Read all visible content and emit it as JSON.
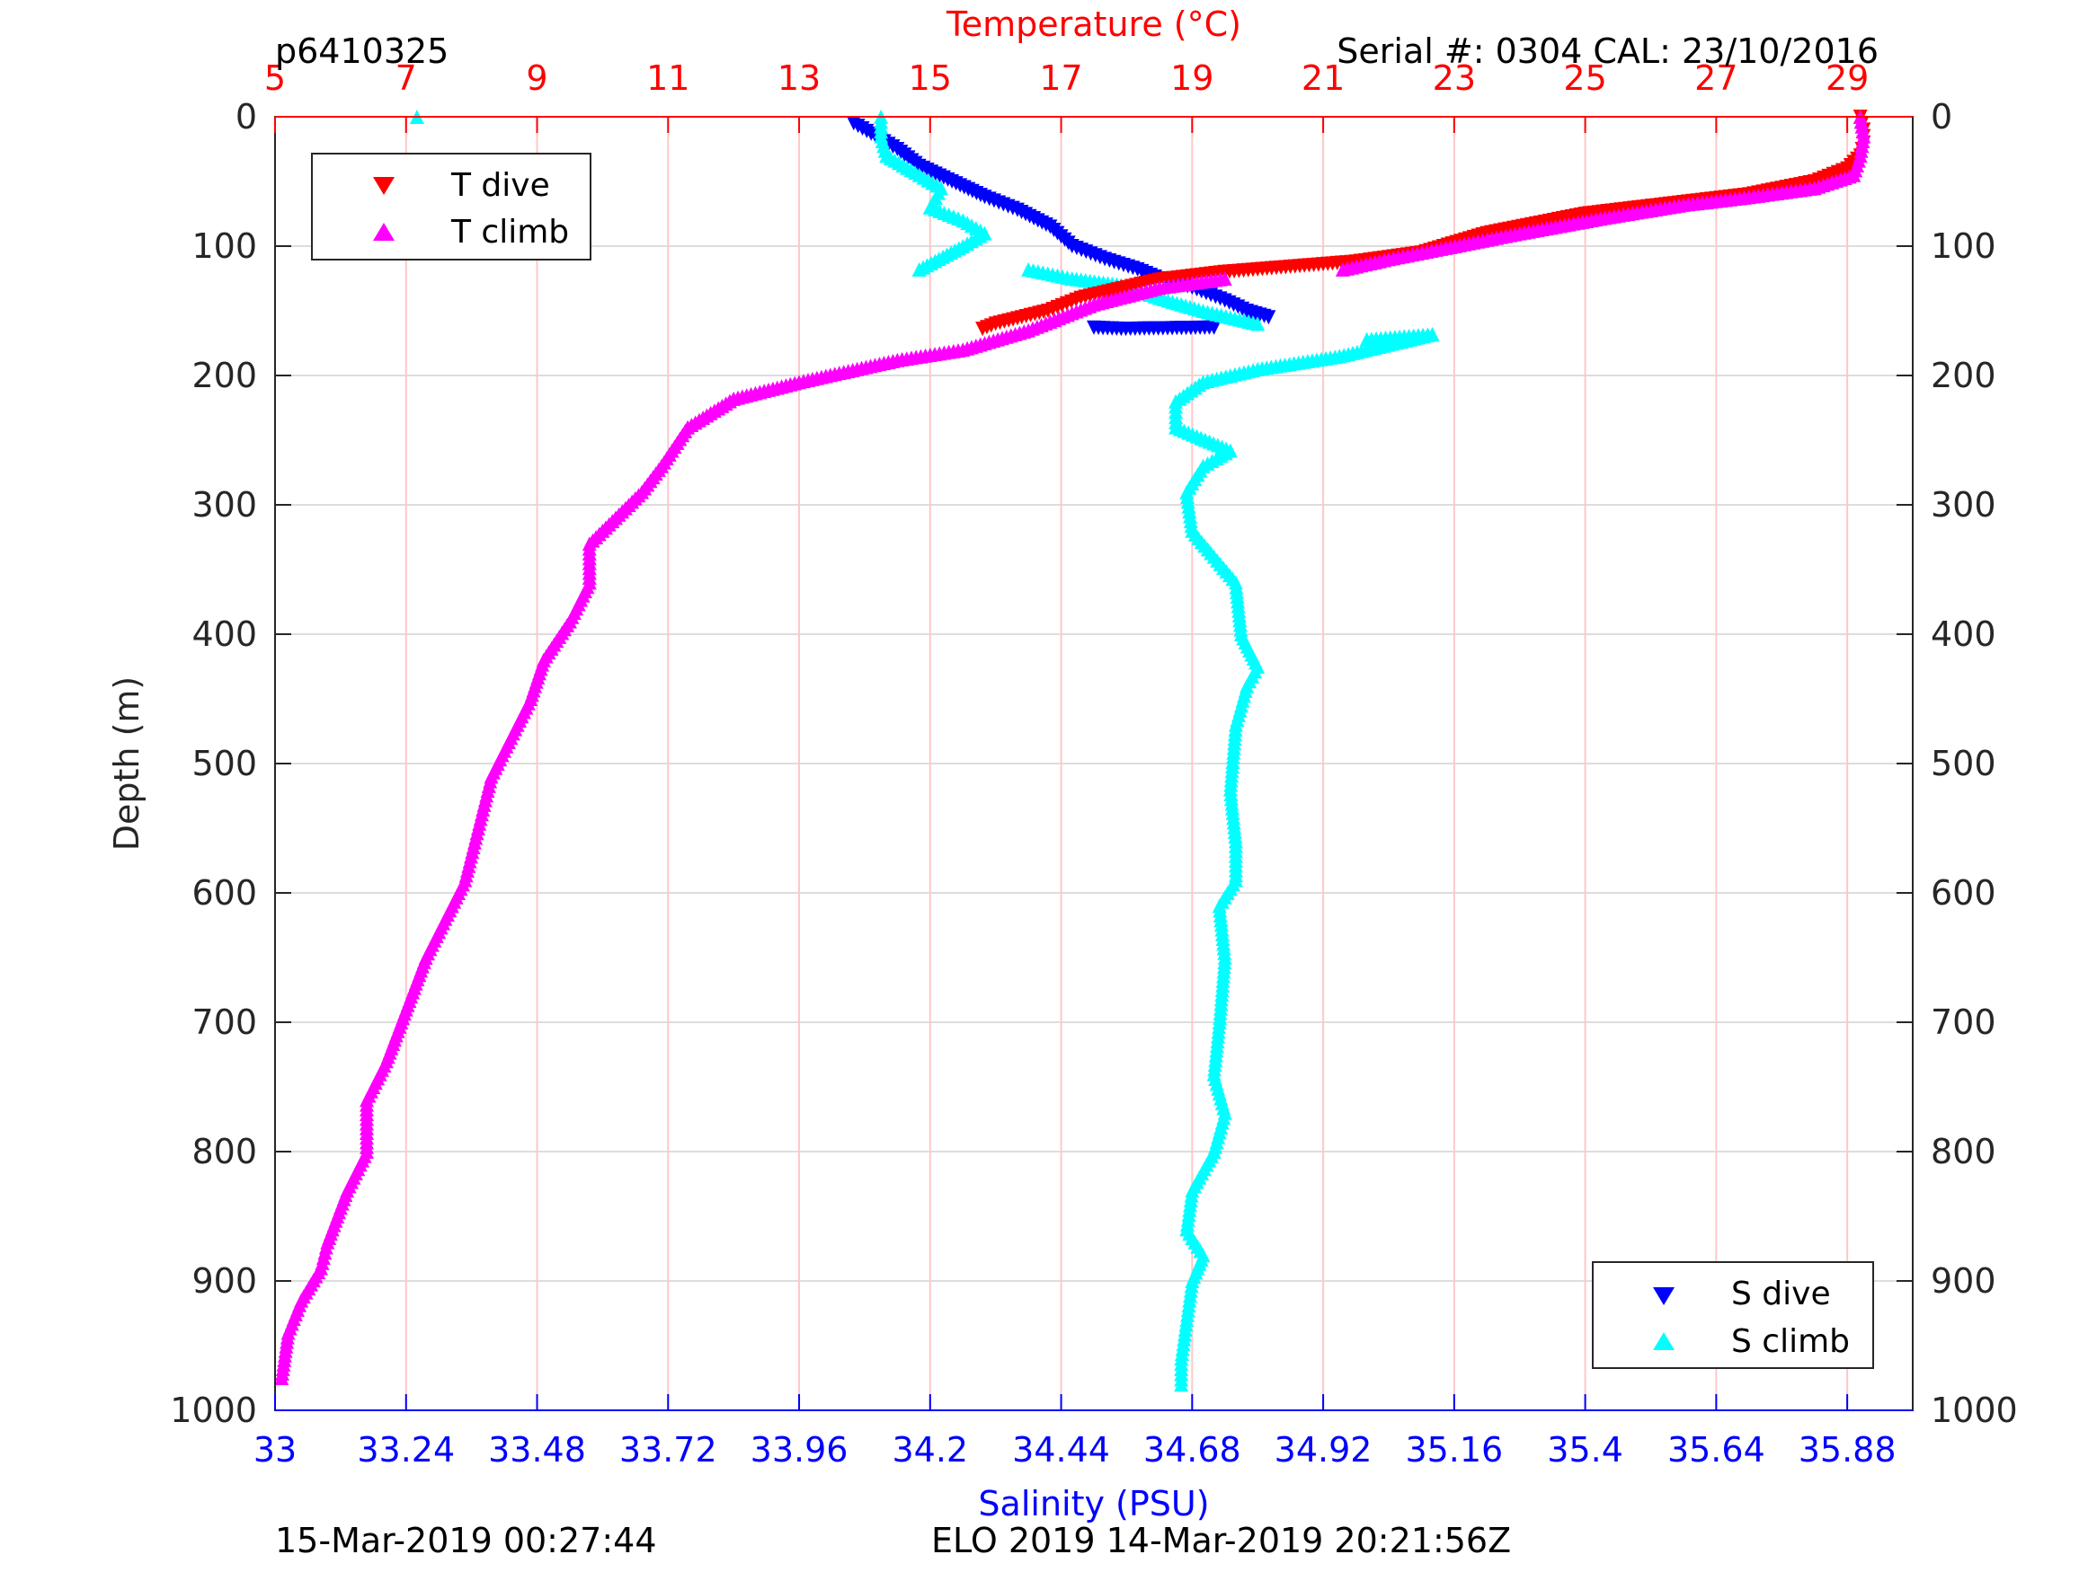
{
  "header": {
    "profile_id": "p6410325",
    "serial_cal": "Serial #: 0304  CAL: 23/10/2016"
  },
  "footer": {
    "left_timestamp": "15-Mar-2019 00:27:44",
    "right_text": "ELO 2019 14-Mar-2019 20:21:56Z"
  },
  "colors": {
    "temperature_axis": "#ff0000",
    "salinity_axis": "#0000ff",
    "t_dive": "#ff0000",
    "t_climb": "#ff00ff",
    "s_dive": "#0000ff",
    "s_climb": "#00ffff",
    "grid_temp": "#ffc8c8",
    "grid_depth": "#dddddd"
  },
  "chart_data": {
    "type": "scatter",
    "grid": true,
    "y_axis": {
      "label": "Depth (m)",
      "range": [
        0,
        1000
      ],
      "reversed": true,
      "ticks": [
        0,
        100,
        200,
        300,
        400,
        500,
        600,
        700,
        800,
        900,
        1000
      ],
      "tick_labels": [
        "0",
        "100",
        "200",
        "300",
        "400",
        "500",
        "600",
        "700",
        "800",
        "900",
        "1000"
      ]
    },
    "x_top": {
      "label": "Temperature (°C)",
      "range": [
        5,
        30
      ],
      "ticks": [
        5,
        7,
        9,
        11,
        13,
        15,
        17,
        19,
        21,
        23,
        25,
        27,
        29
      ],
      "tick_labels": [
        "5",
        "7",
        "9",
        "11",
        "13",
        "15",
        "17",
        "19",
        "21",
        "23",
        "25",
        "27",
        "29"
      ]
    },
    "x_bottom": {
      "label": "Salinity (PSU)",
      "range": [
        33,
        36
      ],
      "ticks": [
        33,
        33.24,
        33.48,
        33.72,
        33.96,
        34.2,
        34.44,
        34.68,
        34.92,
        35.16,
        35.4,
        35.64,
        35.88
      ],
      "tick_labels": [
        "33",
        "33.24",
        "33.48",
        "33.72",
        "33.96",
        "34.2",
        "34.44",
        "34.68",
        "34.92",
        "35.16",
        "35.4",
        "35.64",
        "35.88"
      ]
    },
    "legends": [
      {
        "placement": "top-left",
        "entries": [
          {
            "label": "T dive",
            "marker": "triangle-down",
            "series": "T dive"
          },
          {
            "label": "T climb",
            "marker": "triangle-up",
            "series": "T climb"
          }
        ]
      },
      {
        "placement": "bottom-right",
        "entries": [
          {
            "label": "S dive",
            "marker": "triangle-down",
            "series": "S dive"
          },
          {
            "label": "S climb",
            "marker": "triangle-up",
            "series": "S climb"
          }
        ]
      }
    ],
    "series": [
      {
        "name": "T dive",
        "axis": "temperature",
        "marker": "triangle-down",
        "points": [
          [
            29.2,
            0
          ],
          [
            29.25,
            10
          ],
          [
            29.25,
            20
          ],
          [
            29.2,
            30
          ],
          [
            29.0,
            40
          ],
          [
            28.5,
            50
          ],
          [
            27.5,
            60
          ],
          [
            26.5,
            66
          ],
          [
            25.0,
            75
          ],
          [
            23.5,
            90
          ],
          [
            22.5,
            105
          ],
          [
            21.5,
            112
          ],
          [
            20.5,
            116
          ],
          [
            19.5,
            120
          ],
          [
            18.5,
            126
          ],
          [
            17.3,
            140
          ],
          [
            16.8,
            150
          ],
          [
            16.0,
            160
          ],
          [
            15.8,
            164
          ]
        ]
      },
      {
        "name": "T climb",
        "axis": "temperature",
        "marker": "triangle-up",
        "points": [
          [
            29.2,
            0
          ],
          [
            29.25,
            15
          ],
          [
            29.2,
            30
          ],
          [
            29.1,
            45
          ],
          [
            28.5,
            55
          ],
          [
            27.5,
            62
          ],
          [
            26.5,
            68
          ],
          [
            25.3,
            78
          ],
          [
            24.0,
            90
          ],
          [
            22.8,
            102
          ],
          [
            22.0,
            110
          ],
          [
            21.3,
            118
          ],
          [
            19.5,
            125
          ],
          [
            18.5,
            132
          ],
          [
            17.5,
            145
          ],
          [
            16.5,
            165
          ],
          [
            15.5,
            180
          ],
          [
            14.5,
            188
          ],
          [
            13.0,
            205
          ],
          [
            12.0,
            218
          ],
          [
            11.3,
            240
          ],
          [
            10.9,
            270
          ],
          [
            10.6,
            290
          ],
          [
            10.2,
            310
          ],
          [
            9.8,
            330
          ],
          [
            9.8,
            360
          ],
          [
            9.5,
            390
          ],
          [
            9.1,
            420
          ],
          [
            8.9,
            450
          ],
          [
            8.6,
            480
          ],
          [
            8.3,
            510
          ],
          [
            8.1,
            550
          ],
          [
            7.9,
            590
          ],
          [
            7.6,
            620
          ],
          [
            7.3,
            650
          ],
          [
            7.0,
            690
          ],
          [
            6.7,
            730
          ],
          [
            6.4,
            760
          ],
          [
            6.4,
            800
          ],
          [
            6.1,
            830
          ],
          [
            5.8,
            870
          ],
          [
            5.7,
            890
          ],
          [
            5.4,
            915
          ],
          [
            5.2,
            940
          ],
          [
            5.1,
            975
          ]
        ]
      },
      {
        "name": "S dive",
        "axis": "salinity",
        "marker": "triangle-down",
        "points": [
          [
            34.06,
            5
          ],
          [
            34.1,
            15
          ],
          [
            34.14,
            25
          ],
          [
            34.18,
            38
          ],
          [
            34.24,
            50
          ],
          [
            34.3,
            62
          ],
          [
            34.36,
            72
          ],
          [
            34.42,
            85
          ],
          [
            34.46,
            100
          ],
          [
            34.52,
            110
          ],
          [
            34.58,
            118
          ],
          [
            34.62,
            125
          ],
          [
            34.68,
            132
          ],
          [
            34.74,
            142
          ],
          [
            34.78,
            150
          ],
          [
            34.82,
            155
          ],
          [
            34.5,
            163
          ],
          [
            34.55,
            164
          ],
          [
            34.72,
            163
          ]
        ]
      },
      {
        "name": "S climb",
        "axis": "salinity",
        "marker": "triangle-up",
        "points": [
          [
            33.26,
            0
          ],
          [
            34.11,
            0
          ],
          [
            34.11,
            15
          ],
          [
            34.12,
            30
          ],
          [
            34.18,
            45
          ],
          [
            34.22,
            55
          ],
          [
            34.2,
            70
          ],
          [
            34.26,
            80
          ],
          [
            34.3,
            90
          ],
          [
            34.26,
            100
          ],
          [
            34.18,
            118
          ],
          [
            34.38,
            118
          ],
          [
            34.46,
            125
          ],
          [
            34.55,
            130
          ],
          [
            34.62,
            140
          ],
          [
            34.7,
            150
          ],
          [
            34.8,
            160
          ],
          [
            35.0,
            172
          ],
          [
            35.12,
            168
          ],
          [
            34.95,
            185
          ],
          [
            34.8,
            195
          ],
          [
            34.7,
            205
          ],
          [
            34.65,
            220
          ],
          [
            34.65,
            240
          ],
          [
            34.75,
            258
          ],
          [
            34.7,
            270
          ],
          [
            34.67,
            290
          ],
          [
            34.68,
            320
          ],
          [
            34.72,
            340
          ],
          [
            34.76,
            360
          ],
          [
            34.77,
            400
          ],
          [
            34.8,
            425
          ],
          [
            34.78,
            440
          ],
          [
            34.76,
            470
          ],
          [
            34.75,
            520
          ],
          [
            34.76,
            560
          ],
          [
            34.76,
            590
          ],
          [
            34.73,
            610
          ],
          [
            34.74,
            650
          ],
          [
            34.73,
            700
          ],
          [
            34.72,
            740
          ],
          [
            34.74,
            770
          ],
          [
            34.72,
            800
          ],
          [
            34.68,
            830
          ],
          [
            34.67,
            860
          ],
          [
            34.7,
            880
          ],
          [
            34.68,
            900
          ],
          [
            34.67,
            930
          ],
          [
            34.66,
            960
          ],
          [
            34.66,
            980
          ]
        ]
      }
    ]
  }
}
